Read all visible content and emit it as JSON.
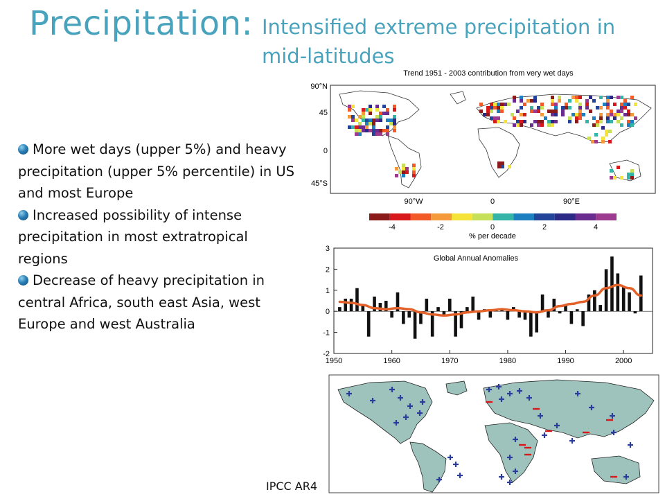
{
  "slide": {
    "title": "Precipitation:",
    "subtitle": "Intensified extreme precipitation in mid-latitudes",
    "bullets": [
      "More wet days (upper 5%) and heavy precipitation (upper 5% percentile) in US and most Europe",
      "Increased possibility of intense precipitation in most extratropical regions",
      "Decrease of heavy precipitation in central Africa, south east Asia, west Europe and west Australia"
    ],
    "source": "IPCC AR4"
  },
  "colors": {
    "accent": "#4aa3bd",
    "series_line": "#e2622a",
    "bar": "#111111"
  },
  "chart_data": [
    {
      "type": "heatmap",
      "title": "Trend 1951 - 2003 contribution from very wet days",
      "lat_ticks": [
        "90°N",
        "45",
        "0",
        "45°S"
      ],
      "lon_ticks": [
        "90°W",
        "0",
        "90°E"
      ],
      "colorbar": {
        "label": "% per decade",
        "ticks": [
          "-4",
          "-2",
          "0",
          "2",
          "4"
        ],
        "colors": [
          "#8b1a1a",
          "#d7191c",
          "#f25a2a",
          "#f59a3a",
          "#f6e33a",
          "#c6e05a",
          "#35b4a8",
          "#1e7fc0",
          "#22459a",
          "#2b2a86",
          "#6a2c8e",
          "#9b3a8f"
        ]
      }
    },
    {
      "type": "bar",
      "title": "Global Annual Anomalies",
      "xlim": [
        1950,
        2005
      ],
      "ylim": [
        -2,
        3
      ],
      "x_ticks": [
        "1950",
        "1960",
        "1970",
        "1980",
        "1990",
        "2000"
      ],
      "y_ticks": [
        "3",
        "2",
        "1",
        "0",
        "-1",
        "-2"
      ],
      "years": [
        1951,
        1952,
        1953,
        1954,
        1955,
        1956,
        1957,
        1958,
        1959,
        1960,
        1961,
        1962,
        1963,
        1964,
        1965,
        1966,
        1967,
        1968,
        1969,
        1970,
        1971,
        1972,
        1973,
        1974,
        1975,
        1976,
        1977,
        1978,
        1979,
        1980,
        1981,
        1982,
        1983,
        1984,
        1985,
        1986,
        1987,
        1988,
        1989,
        1990,
        1991,
        1992,
        1993,
        1994,
        1995,
        1996,
        1997,
        1998,
        1999,
        2000,
        2001,
        2002,
        2003
      ],
      "values": [
        0.2,
        0.6,
        0.6,
        1.1,
        0.3,
        -1.2,
        0.7,
        0.4,
        0.5,
        -0.3,
        0.9,
        -0.6,
        -0.3,
        -1.3,
        -0.6,
        0.6,
        -1.2,
        0.2,
        -0.2,
        0.6,
        -1.2,
        -0.8,
        0.2,
        0.7,
        -0.4,
        0.1,
        -0.3,
        0.1,
        0.1,
        -0.4,
        0.2,
        -0.3,
        -0.4,
        -1.2,
        -1.0,
        0.8,
        -0.3,
        0.6,
        -0.1,
        0.3,
        -0.6,
        0.1,
        -0.7,
        0.8,
        1.0,
        0.3,
        2.0,
        2.6,
        1.8,
        1.2,
        0.9,
        -0.1,
        1.7
      ],
      "series": [
        {
          "type": "line",
          "x": [
            1951,
            1953,
            1955,
            1957,
            1959,
            1961,
            1963,
            1965,
            1967,
            1969,
            1971,
            1973,
            1975,
            1977,
            1979,
            1981,
            1983,
            1985,
            1987,
            1989,
            1991,
            1993,
            1995,
            1997,
            1999,
            2001,
            2003
          ],
          "values": [
            0.45,
            0.4,
            0.3,
            0.15,
            0.1,
            0.15,
            0.1,
            -0.05,
            -0.15,
            -0.2,
            -0.15,
            -0.05,
            0.0,
            0.05,
            0.1,
            0.05,
            0.0,
            -0.05,
            0.05,
            0.25,
            0.35,
            0.45,
            0.75,
            1.1,
            1.25,
            1.1,
            0.75
          ]
        }
      ]
    },
    {
      "type": "map",
      "legend_symbols": [
        "+",
        "−"
      ]
    }
  ]
}
